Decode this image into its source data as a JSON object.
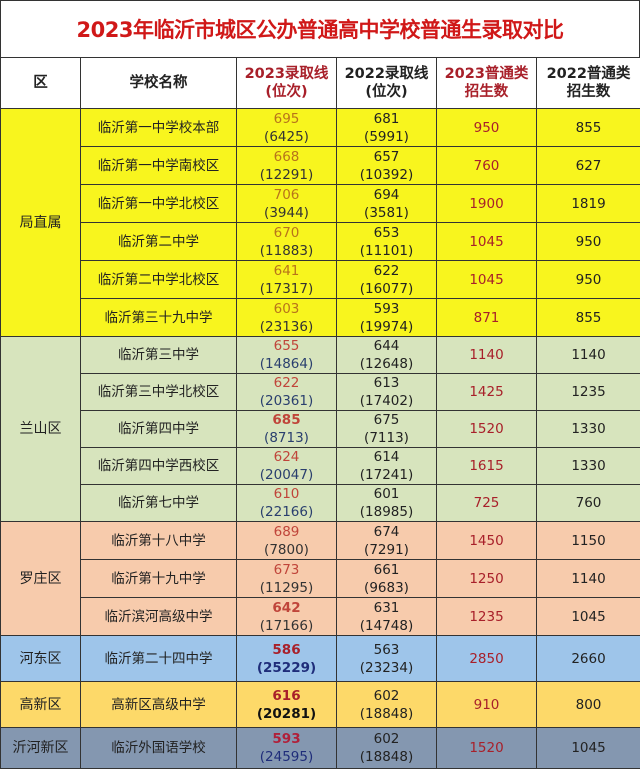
{
  "title": "2023年临沂市城区公办普通高中学校普通生录取对比",
  "headers": {
    "district": "区",
    "school": "学校名称",
    "line2023": [
      "2023录取线",
      "(位次)"
    ],
    "line2022": [
      "2022录取线",
      "(位次)"
    ],
    "enroll2023": [
      "2023普通类",
      "招生数"
    ],
    "enroll2022": [
      "2022普通类",
      "招生数"
    ]
  },
  "colors": {
    "title": "#d01818",
    "局直属": "#f8f51e",
    "兰山区": "#d7e4bd",
    "罗庄区": "#f7cbac",
    "河东区": "#9ec5ea",
    "高新区": "#fdd969",
    "沂河新区": "#8497b0"
  },
  "groups": [
    {
      "district": "局直属",
      "bg": "#f8f51e",
      "score_color": "#b8741a",
      "rank_color": "#333333",
      "row_h": 38,
      "rows": [
        {
          "school": "临沂第一中学校本部",
          "s23": "695",
          "r23": "(6425)",
          "s22": "681",
          "r22": "(5991)",
          "e23": "950",
          "e22": "855"
        },
        {
          "school": "临沂第一中学南校区",
          "s23": "668",
          "r23": "(12291)",
          "s22": "657",
          "r22": "(10392)",
          "e23": "760",
          "e22": "627"
        },
        {
          "school": "临沂第一中学北校区",
          "s23": "706",
          "r23": "(3944)",
          "s22": "694",
          "r22": "(3581)",
          "e23": "1900",
          "e22": "1819"
        },
        {
          "school": "临沂第二中学",
          "s23": "670",
          "r23": "(11883)",
          "s22": "653",
          "r22": "(11101)",
          "e23": "1045",
          "e22": "950"
        },
        {
          "school": "临沂第二中学北校区",
          "s23": "641",
          "r23": "(17317)",
          "s22": "622",
          "r22": "(16077)",
          "e23": "1045",
          "e22": "950"
        },
        {
          "school": "临沂第三十九中学",
          "s23": "603",
          "r23": "(23136)",
          "s22": "593",
          "r22": "(19974)",
          "e23": "871",
          "e22": "855"
        }
      ]
    },
    {
      "district": "兰山区",
      "bg": "#d7e4bd",
      "score_color": "#c0453a",
      "rank_color": "#2a3f6e",
      "row_h": 37,
      "rows": [
        {
          "school": "临沂第三中学",
          "s23": "655",
          "r23": "(14864)",
          "s22": "644",
          "r22": "(12648)",
          "e23": "1140",
          "e22": "1140"
        },
        {
          "school": "临沂第三中学北校区",
          "s23": "622",
          "r23": "(20361)",
          "s22": "613",
          "r22": "(17402)",
          "e23": "1425",
          "e22": "1235"
        },
        {
          "school": "临沂第四中学",
          "s23": "685",
          "r23": "(8713)",
          "s22": "675",
          "r22": "(7113)",
          "e23": "1520",
          "e22": "1330",
          "bold_score": true
        },
        {
          "school": "临沂第四中学西校区",
          "s23": "624",
          "r23": "(20047)",
          "s22": "614",
          "r22": "(17241)",
          "e23": "1615",
          "e22": "1330"
        },
        {
          "school": "临沂第七中学",
          "s23": "610",
          "r23": "(22166)",
          "s22": "601",
          "r22": "(18985)",
          "e23": "725",
          "e22": "760"
        }
      ]
    },
    {
      "district": "罗庄区",
      "bg": "#f7cbac",
      "score_color": "#c0453a",
      "rank_color": "#333333",
      "row_h": 38,
      "rows": [
        {
          "school": "临沂第十八中学",
          "s23": "689",
          "r23": "(7800)",
          "s22": "674",
          "r22": "(7291)",
          "e23": "1450",
          "e22": "1150"
        },
        {
          "school": "临沂第十九中学",
          "s23": "673",
          "r23": "(11295)",
          "s22": "661",
          "r22": "(9683)",
          "e23": "1250",
          "e22": "1140"
        },
        {
          "school": "临沂滨河高级中学",
          "s23": "642",
          "r23": "(17166)",
          "s22": "631",
          "r22": "(14748)",
          "e23": "1235",
          "e22": "1045",
          "bold_score": true
        }
      ]
    },
    {
      "district": "河东区",
      "bg": "#9ec5ea",
      "score_color": "#a8202a",
      "rank_color": "#1f2d7a",
      "row_h": 46,
      "rows": [
        {
          "school": "临沂第二十四中学",
          "s23": "586",
          "r23": "(25229)",
          "s22": "563",
          "r22": "(23234)",
          "e23": "2850",
          "e22": "2660",
          "bold_score": true,
          "bold_rank": true
        }
      ]
    },
    {
      "district": "高新区",
      "bg": "#fdd969",
      "score_color": "#a8202a",
      "rank_color": "#111111",
      "row_h": 46,
      "rows": [
        {
          "school": "高新区高级中学",
          "s23": "616",
          "r23": "(20281)",
          "s22": "602",
          "r22": "(18848)",
          "e23": "910",
          "e22": "800",
          "bold_score": true,
          "bold_rank": true
        }
      ]
    },
    {
      "district": "沂河新区",
      "bg": "#8497b0",
      "score_color": "#b0203a",
      "rank_color": "#1f2d7a",
      "row_h": 41,
      "rows": [
        {
          "school": "临沂外国语学校",
          "s23": "593",
          "r23": "(24595)",
          "s22": "602",
          "r22": "(18848)",
          "e23": "1520",
          "e22": "1045",
          "bold_score": true
        }
      ]
    }
  ]
}
